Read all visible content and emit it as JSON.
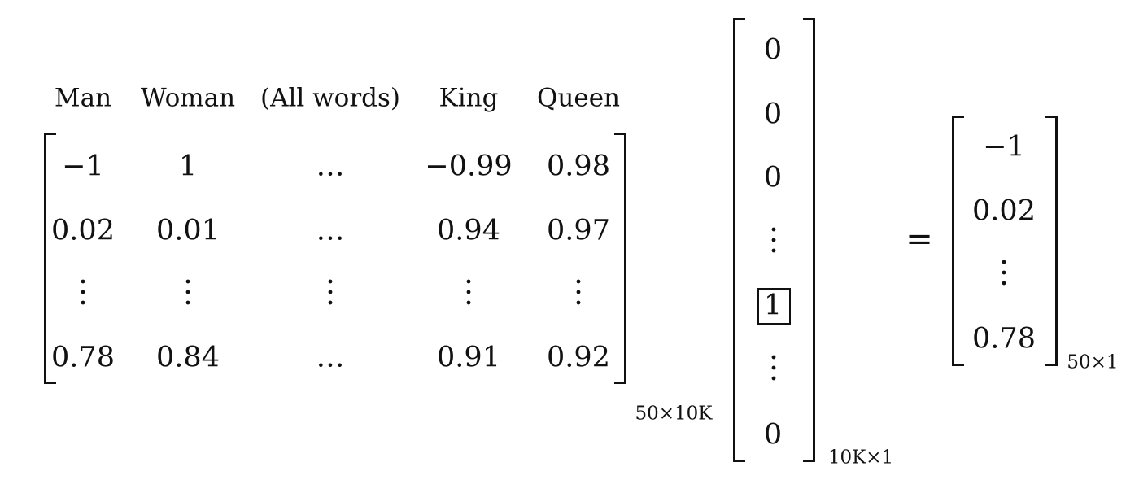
{
  "matrix": {
    "column_headers": [
      "Man",
      "Woman",
      "(All words)",
      "King",
      "Queen"
    ],
    "rows": [
      [
        "−1",
        "1",
        "…",
        "−0.99",
        "0.98"
      ],
      [
        "0.02",
        "0.01",
        "…",
        "0.94",
        "0.97"
      ],
      [
        "vdots",
        "vdots",
        "vdots",
        "vdots",
        "vdots"
      ],
      [
        "0.78",
        "0.84",
        "…",
        "0.91",
        "0.92"
      ]
    ],
    "size_label": "50×10K"
  },
  "one_hot": {
    "entries": [
      "0",
      "0",
      "0",
      "vdots",
      "1",
      "vdots",
      "0"
    ],
    "highlighted": "1",
    "size_label": "10K×1"
  },
  "equals": "=",
  "result": {
    "entries": [
      "−1",
      "0.02",
      "vdots",
      "0.78"
    ],
    "size_label": "50×1"
  }
}
